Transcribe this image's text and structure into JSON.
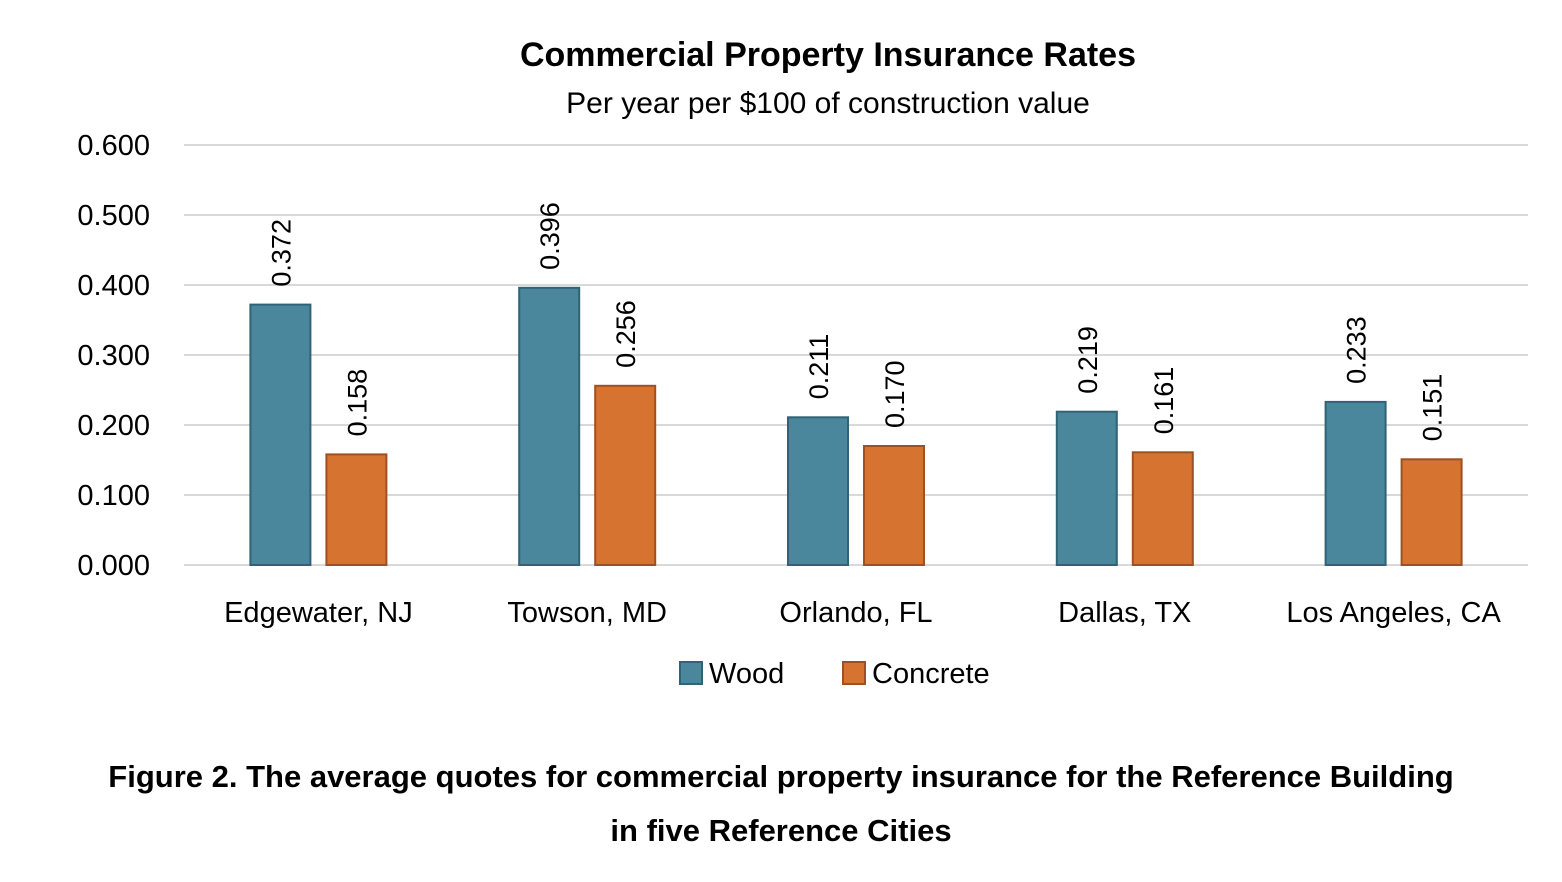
{
  "chart_data": {
    "type": "bar",
    "title": "Commercial Property Insurance Rates",
    "subtitle": "Per year per $100 of construction value",
    "categories": [
      "Edgewater, NJ",
      "Towson, MD",
      "Orlando, FL",
      "Dallas, TX",
      "Los Angeles, CA"
    ],
    "series": [
      {
        "name": "Wood",
        "color": "#4a869c",
        "values": [
          0.372,
          0.396,
          0.211,
          0.219,
          0.233
        ],
        "labels": [
          "0.372",
          "0.396",
          "0.211",
          "0.219",
          "0.233"
        ]
      },
      {
        "name": "Concrete",
        "color": "#d67331",
        "values": [
          0.158,
          0.256,
          0.17,
          0.161,
          0.151
        ],
        "labels": [
          "0.158",
          "0.256",
          "0.170",
          "0.161",
          "0.151"
        ]
      }
    ],
    "ylim": [
      0,
      0.6
    ],
    "yticks": [
      "0.000",
      "0.100",
      "0.200",
      "0.300",
      "0.400",
      "0.500",
      "0.600"
    ],
    "xlabel": "",
    "ylabel": "",
    "grid": true,
    "legend": "bottom"
  },
  "caption": {
    "line1": "Figure 2. The average quotes for commercial property insurance for the Reference Building",
    "line2": "in five Reference Cities"
  }
}
